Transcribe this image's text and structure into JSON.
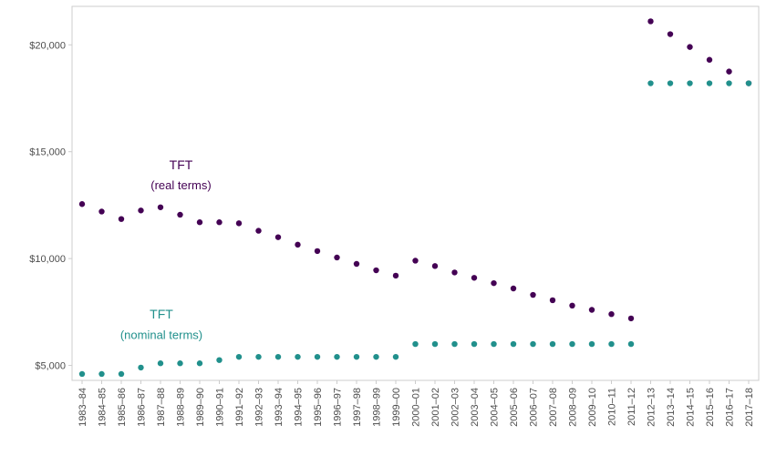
{
  "chart_data": {
    "type": "scatter",
    "title": "",
    "xlabel": "",
    "ylabel": "",
    "ylim": [
      4300,
      21800
    ],
    "y_ticks": [
      5000,
      10000,
      15000,
      20000
    ],
    "y_tick_labels": [
      "$5,000",
      "$10,000",
      "$15,000",
      "$20,000"
    ],
    "grid": false,
    "categories": [
      "1983–84",
      "1984–85",
      "1985–86",
      "1986–87",
      "1987–88",
      "1988–89",
      "1989–90",
      "1990–91",
      "1991–92",
      "1992–93",
      "1993–94",
      "1994–95",
      "1995–96",
      "1996–97",
      "1997–98",
      "1998–99",
      "1999–00",
      "2000–01",
      "2001–02",
      "2002–03",
      "2003–04",
      "2004–05",
      "2005–06",
      "2006–07",
      "2007–08",
      "2008–09",
      "2009–10",
      "2010–11",
      "2011–12",
      "2012–13",
      "2013–14",
      "2014–15",
      "2015–16",
      "2016–17",
      "2017–18"
    ],
    "series": [
      {
        "color": "#440154",
        "values": [
          12550,
          12200,
          11850,
          12250,
          12400,
          12050,
          11700,
          11700,
          11650,
          11300,
          11000,
          10650,
          10350,
          10050,
          9750,
          9450,
          9200,
          9900,
          9650,
          9350,
          9100,
          8850,
          8600,
          8300,
          8050,
          7800,
          7600,
          7400,
          7200,
          21100,
          20500,
          19900,
          19300,
          18750,
          18200
        ]
      },
      {
        "color": "#21908C",
        "values": [
          4600,
          4600,
          4600,
          4900,
          5100,
          5100,
          5100,
          5250,
          5400,
          5400,
          5400,
          5400,
          5400,
          5400,
          5400,
          5400,
          5400,
          6000,
          6000,
          6000,
          6000,
          6000,
          6000,
          6000,
          6000,
          6000,
          6000,
          6000,
          6000,
          18200,
          18200,
          18200,
          18200,
          18200,
          18200
        ]
      }
    ],
    "annotations": [
      {
        "text": "TFT",
        "x": "1988–89",
        "y": 14400,
        "color": "#440154",
        "style": "main"
      },
      {
        "text": "(real terms)",
        "x": "1988–89",
        "y": 13450,
        "color": "#440154",
        "style": "sub"
      },
      {
        "text": "TFT",
        "x": "1987–88",
        "y": 7400,
        "color": "#21908C",
        "style": "main"
      },
      {
        "text": "(nominal terms)",
        "x": "1987–88",
        "y": 6450,
        "color": "#21908C",
        "style": "sub"
      }
    ]
  },
  "colors": {
    "real": "#440154",
    "nominal": "#21908C",
    "axis": "#cccccc",
    "tick_text": "#4d4d4d"
  }
}
